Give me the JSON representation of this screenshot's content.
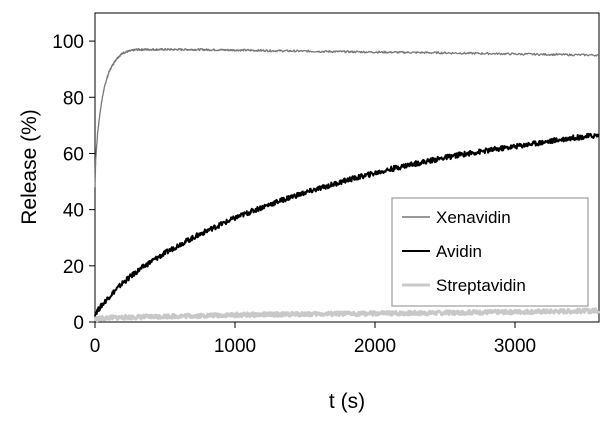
{
  "chart_data": {
    "type": "line",
    "xlabel": "t (s)",
    "ylabel": "Release (%)",
    "xlim": [
      0,
      3600
    ],
    "ylim": [
      0,
      110
    ],
    "xticks": [
      0,
      1000,
      2000,
      3000
    ],
    "yticks": [
      0,
      20,
      40,
      60,
      80,
      100
    ],
    "grid": false,
    "legend_position": "right",
    "series": [
      {
        "name": "Xenavidin",
        "color": "#777777",
        "x": [
          0,
          5,
          20,
          40,
          60,
          80,
          100,
          120,
          150,
          180,
          200,
          250,
          300,
          350,
          400,
          500,
          700,
          1000,
          1500,
          2000,
          2500,
          3000,
          3600
        ],
        "values": [
          48,
          58,
          68,
          76,
          82,
          86,
          89,
          91,
          93.5,
          95,
          95.8,
          96.5,
          97,
          97,
          97,
          97,
          97,
          96.8,
          96.4,
          96.1,
          95.8,
          95.4,
          95
        ]
      },
      {
        "name": "Avidin",
        "color": "#000000",
        "x": [
          0,
          50,
          100,
          200,
          300,
          400,
          500,
          600,
          800,
          1000,
          1200,
          1400,
          1600,
          1800,
          2000,
          2200,
          2400,
          2600,
          2800,
          3000,
          3200,
          3400,
          3600
        ],
        "values": [
          3,
          6,
          9,
          14,
          18,
          21.5,
          24.5,
          27.5,
          32.5,
          37,
          41,
          44.5,
          47.5,
          50.5,
          53,
          55.5,
          57.5,
          59.5,
          61,
          62.5,
          64,
          65.5,
          66.5
        ]
      },
      {
        "name": "Streptavidin",
        "color": "#c8c8c8",
        "x": [
          0,
          100,
          500,
          1000,
          1500,
          2000,
          2500,
          3000,
          3600
        ],
        "values": [
          1,
          1.5,
          2,
          2.5,
          2.8,
          3,
          3.3,
          3.6,
          4
        ]
      }
    ]
  }
}
